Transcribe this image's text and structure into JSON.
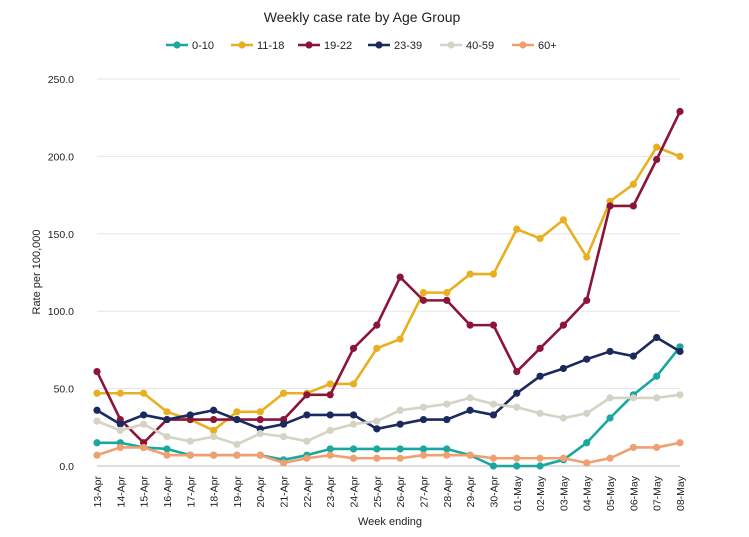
{
  "chart_data": {
    "type": "line",
    "title": "Weekly case rate by Age Group",
    "xlabel": "Week ending",
    "ylabel": "Rate per 100,000",
    "ylim": [
      0,
      250
    ],
    "yticks": [
      "0.0",
      "50.0",
      "100.0",
      "150.0",
      "200.0",
      "250.0"
    ],
    "grid": "horizontal",
    "legend_position": "top",
    "categories": [
      "13-Apr",
      "14-Apr",
      "15-Apr",
      "16-Apr",
      "17-Apr",
      "18-Apr",
      "19-Apr",
      "20-Apr",
      "21-Apr",
      "22-Apr",
      "23-Apr",
      "24-Apr",
      "25-Apr",
      "26-Apr",
      "27-Apr",
      "28-Apr",
      "29-Apr",
      "30-Apr",
      "01-May",
      "02-May",
      "03-May",
      "04-May",
      "05-May",
      "06-May",
      "07-May",
      "08-May"
    ],
    "series": [
      {
        "name": "0-10",
        "color": "#1aa79e",
        "values": [
          15,
          15,
          12,
          11,
          7,
          7,
          7,
          7,
          4,
          7,
          11,
          11,
          11,
          11,
          11,
          11,
          7,
          0,
          0,
          0,
          4,
          15,
          31,
          46,
          58,
          77
        ]
      },
      {
        "name": "11-18",
        "color": "#e8b020",
        "values": [
          47,
          47,
          47,
          35,
          30,
          23,
          35,
          35,
          47,
          47,
          53,
          53,
          76,
          82,
          112,
          112,
          124,
          124,
          153,
          147,
          159,
          135,
          171,
          182,
          206,
          200
        ]
      },
      {
        "name": "19-22",
        "color": "#8b1538",
        "values": [
          61,
          30,
          15,
          30,
          30,
          30,
          30,
          30,
          30,
          46,
          46,
          76,
          91,
          122,
          107,
          107,
          91,
          91,
          61,
          76,
          91,
          107,
          168,
          168,
          198,
          229
        ]
      },
      {
        "name": "23-39",
        "color": "#1b2a5e",
        "values": [
          36,
          27,
          33,
          30,
          33,
          36,
          30,
          24,
          27,
          33,
          33,
          33,
          24,
          27,
          30,
          30,
          36,
          33,
          47,
          58,
          63,
          69,
          74,
          71,
          83,
          74
        ]
      },
      {
        "name": "40-59",
        "color": "#d5d3c4",
        "values": [
          29,
          23,
          27,
          19,
          16,
          19,
          14,
          21,
          19,
          16,
          23,
          27,
          29,
          36,
          38,
          40,
          44,
          40,
          38,
          34,
          31,
          34,
          44,
          44,
          44,
          46
        ]
      },
      {
        "name": "60+",
        "color": "#f0a070",
        "values": [
          7,
          12,
          12,
          7,
          7,
          7,
          7,
          7,
          2,
          5,
          7,
          5,
          5,
          5,
          7,
          7,
          7,
          5,
          5,
          5,
          5,
          2,
          5,
          12,
          12,
          15
        ]
      }
    ]
  }
}
